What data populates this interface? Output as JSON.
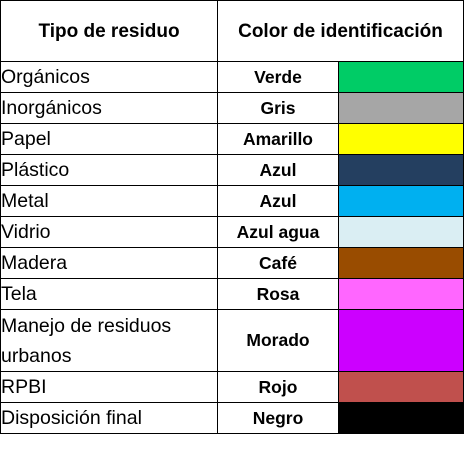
{
  "table": {
    "headers": {
      "type": "Tipo de residuo",
      "color": "Color de identificación"
    },
    "rows": [
      {
        "type": "Orgánicos",
        "color_name": "Verde",
        "hex": "#00cc66"
      },
      {
        "type": "Inorgánicos",
        "color_name": "Gris",
        "hex": "#a6a6a6"
      },
      {
        "type": "Papel",
        "color_name": "Amarillo",
        "hex": "#ffff00"
      },
      {
        "type": "Plástico",
        "color_name": "Azul",
        "hex": "#243f60"
      },
      {
        "type": "Metal",
        "color_name": "Azul",
        "hex": "#00b0f0"
      },
      {
        "type": "Vidrio",
        "color_name": "Azul agua",
        "hex": "#daeef3"
      },
      {
        "type": "Madera",
        "color_name": "Café",
        "hex": "#994c00"
      },
      {
        "type": "Tela",
        "color_name": "Rosa",
        "hex": "#ff66ff"
      },
      {
        "type": "Manejo de residuos urbanos",
        "color_name": "Morado",
        "hex": "#cc00ff"
      },
      {
        "type": "RPBI",
        "color_name": "Rojo",
        "hex": "#c0504d"
      },
      {
        "type": "Disposición final",
        "color_name": "Negro",
        "hex": "#000000"
      }
    ]
  }
}
